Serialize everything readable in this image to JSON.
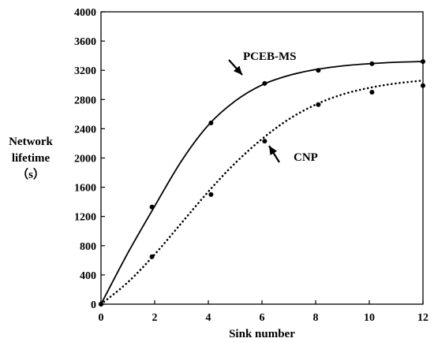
{
  "chart_data": {
    "type": "line",
    "title": "",
    "xlabel": "Sink number",
    "ylabel_lines": [
      "Network",
      "lifetime",
      "（s）"
    ],
    "xlim": [
      0,
      12
    ],
    "ylim": [
      0,
      4000
    ],
    "xticks": [
      0,
      2,
      4,
      6,
      8,
      10,
      12
    ],
    "yticks": [
      0,
      400,
      800,
      1200,
      1600,
      2000,
      2400,
      2800,
      3200,
      3600,
      4000
    ],
    "grid": false,
    "series": [
      {
        "name": "PCEB-MS",
        "style": "solid",
        "points": [
          [
            0,
            0
          ],
          [
            1.9,
            1330
          ],
          [
            4.1,
            2480
          ],
          [
            6.1,
            3020
          ],
          [
            8.1,
            3200
          ],
          [
            10.1,
            3290
          ],
          [
            12,
            3320
          ]
        ],
        "curve": [
          [
            0,
            0
          ],
          [
            1,
            700
          ],
          [
            2,
            1340
          ],
          [
            3,
            1960
          ],
          [
            4,
            2450
          ],
          [
            5,
            2780
          ],
          [
            6,
            3000
          ],
          [
            7,
            3130
          ],
          [
            8,
            3210
          ],
          [
            9,
            3260
          ],
          [
            10,
            3290
          ],
          [
            11,
            3310
          ],
          [
            12,
            3320
          ]
        ]
      },
      {
        "name": "CNP",
        "style": "dotted",
        "points": [
          [
            0,
            0
          ],
          [
            1.9,
            650
          ],
          [
            4.1,
            1500
          ],
          [
            6.1,
            2230
          ],
          [
            8.1,
            2730
          ],
          [
            10.1,
            2900
          ],
          [
            12,
            2990
          ]
        ],
        "curve": [
          [
            0,
            0
          ],
          [
            1,
            300
          ],
          [
            2,
            680
          ],
          [
            3,
            1110
          ],
          [
            4,
            1540
          ],
          [
            5,
            1930
          ],
          [
            6,
            2260
          ],
          [
            7,
            2530
          ],
          [
            8,
            2730
          ],
          [
            9,
            2870
          ],
          [
            10,
            2960
          ],
          [
            11,
            3020
          ],
          [
            12,
            3060
          ]
        ]
      }
    ],
    "annotations": [
      {
        "text": "PCEB-MS",
        "series": "PCEB-MS"
      },
      {
        "text": "CNP",
        "series": "CNP"
      }
    ],
    "colors": {
      "line": "#000000",
      "background": "#ffffff"
    }
  }
}
